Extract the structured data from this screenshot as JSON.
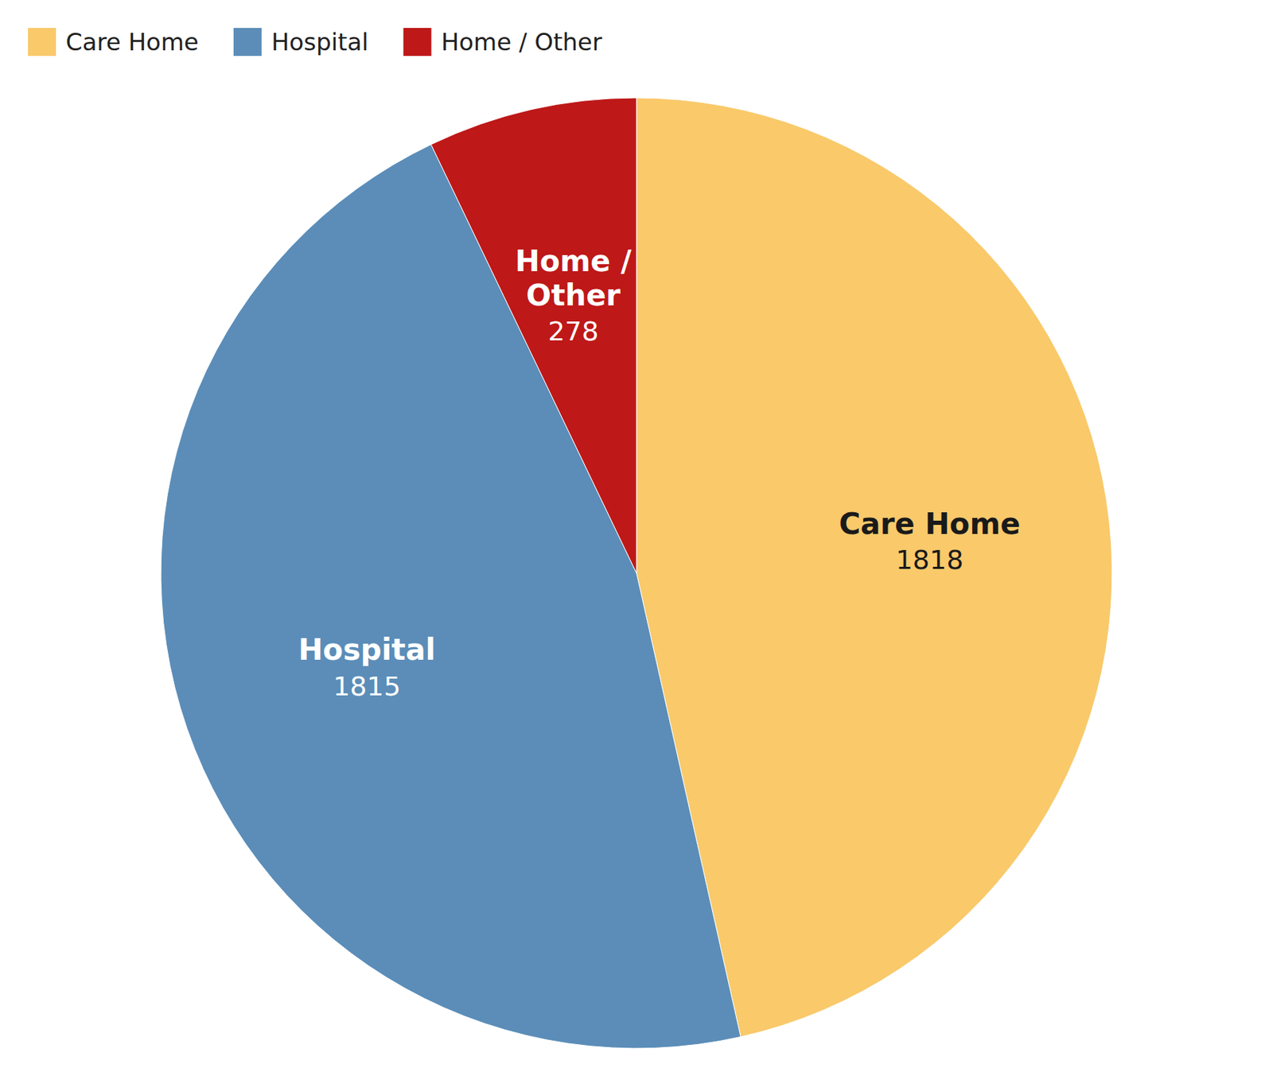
{
  "chart_data": {
    "type": "pie",
    "categories": [
      "Care Home",
      "Hospital",
      "Home / Other"
    ],
    "labels": [
      "Care Home",
      "Hospital",
      "Home /\nOther"
    ],
    "values": [
      1818,
      1815,
      278
    ],
    "colors": [
      "#F9C96A",
      "#5B8DB8",
      "#BE1818"
    ],
    "data_labels": true,
    "legend": "top-left"
  }
}
